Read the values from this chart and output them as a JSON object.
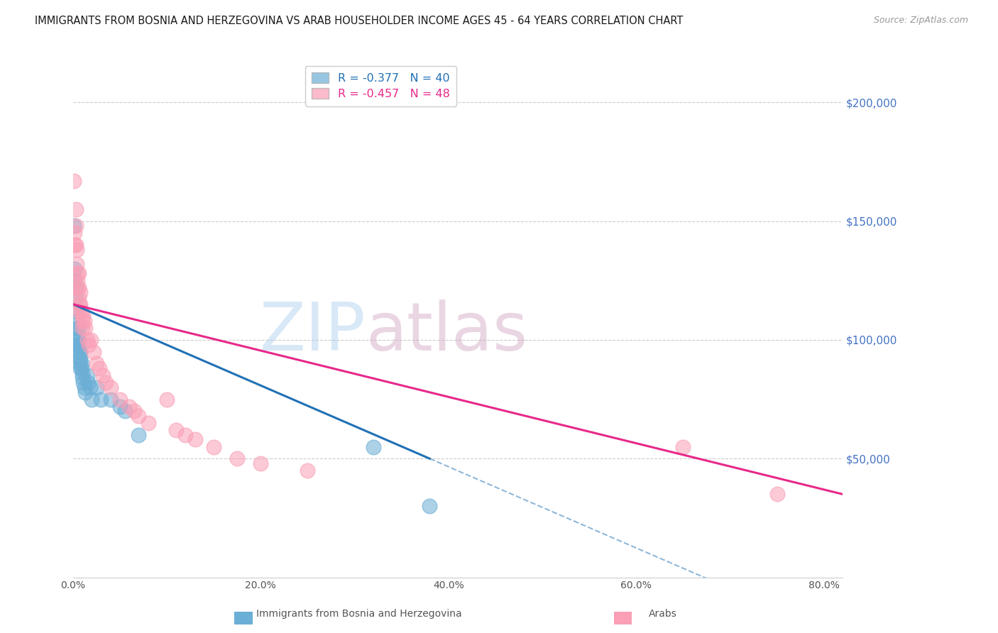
{
  "title": "IMMIGRANTS FROM BOSNIA AND HERZEGOVINA VS ARAB HOUSEHOLDER INCOME AGES 45 - 64 YEARS CORRELATION CHART",
  "source": "Source: ZipAtlas.com",
  "ylabel_right_values": [
    200000,
    150000,
    100000,
    50000
  ],
  "xlabel_ticks": [
    "0.0%",
    "20.0%",
    "40.0%",
    "60.0%",
    "80.0%"
  ],
  "xlabel_tick_values": [
    0.0,
    0.2,
    0.4,
    0.6,
    0.8
  ],
  "legend_label1": "Immigrants from Bosnia and Herzegovina",
  "legend_label2": "Arabs",
  "color_bosnia": "#6baed6",
  "color_arab": "#fa9fb5",
  "color_trendline_bosnia": "#2171b5",
  "color_trendline_arab": "#e7298a",
  "watermark": "ZIPatlas",
  "watermark_color_zip": "#aaccee",
  "watermark_color_atlas": "#cc99bb",
  "bosnia_x": [
    0.001,
    0.002,
    0.002,
    0.003,
    0.003,
    0.003,
    0.004,
    0.004,
    0.004,
    0.005,
    0.005,
    0.005,
    0.006,
    0.006,
    0.006,
    0.006,
    0.007,
    0.007,
    0.008,
    0.008,
    0.008,
    0.009,
    0.009,
    0.01,
    0.01,
    0.011,
    0.012,
    0.013,
    0.015,
    0.016,
    0.018,
    0.02,
    0.025,
    0.03,
    0.04,
    0.05,
    0.055,
    0.07,
    0.32,
    0.38
  ],
  "bosnia_y": [
    148000,
    130000,
    125000,
    122000,
    118000,
    112000,
    108000,
    105000,
    102000,
    100000,
    98000,
    96000,
    105000,
    100000,
    98000,
    95000,
    92000,
    90000,
    95000,
    92000,
    88000,
    90000,
    88000,
    86000,
    84000,
    82000,
    80000,
    78000,
    85000,
    82000,
    80000,
    75000,
    80000,
    75000,
    75000,
    72000,
    70000,
    60000,
    55000,
    30000
  ],
  "arab_x": [
    0.001,
    0.002,
    0.002,
    0.003,
    0.003,
    0.003,
    0.004,
    0.004,
    0.005,
    0.005,
    0.005,
    0.006,
    0.006,
    0.006,
    0.007,
    0.007,
    0.008,
    0.008,
    0.009,
    0.01,
    0.01,
    0.011,
    0.012,
    0.013,
    0.015,
    0.017,
    0.019,
    0.022,
    0.025,
    0.028,
    0.032,
    0.035,
    0.04,
    0.05,
    0.06,
    0.065,
    0.07,
    0.08,
    0.1,
    0.11,
    0.12,
    0.13,
    0.15,
    0.175,
    0.2,
    0.25,
    0.65,
    0.75
  ],
  "arab_y": [
    167000,
    145000,
    140000,
    155000,
    148000,
    140000,
    138000,
    132000,
    128000,
    125000,
    122000,
    128000,
    122000,
    118000,
    115000,
    112000,
    120000,
    115000,
    112000,
    108000,
    105000,
    110000,
    108000,
    105000,
    100000,
    98000,
    100000,
    95000,
    90000,
    88000,
    85000,
    82000,
    80000,
    75000,
    72000,
    70000,
    68000,
    65000,
    75000,
    62000,
    60000,
    58000,
    55000,
    50000,
    48000,
    45000,
    55000,
    35000
  ],
  "xlim": [
    0.0,
    0.82
  ],
  "ylim": [
    0,
    220000
  ],
  "trendline_bosnia_x0": 0.0,
  "trendline_bosnia_x1": 0.38,
  "trendline_bosnia_dash_x1": 0.82,
  "trendline_bosnia_y0": 115000,
  "trendline_bosnia_y1": 50000,
  "trendline_arab_x0": 0.0,
  "trendline_arab_x1": 0.82,
  "trendline_arab_y0": 115000,
  "trendline_arab_y1": 35000
}
